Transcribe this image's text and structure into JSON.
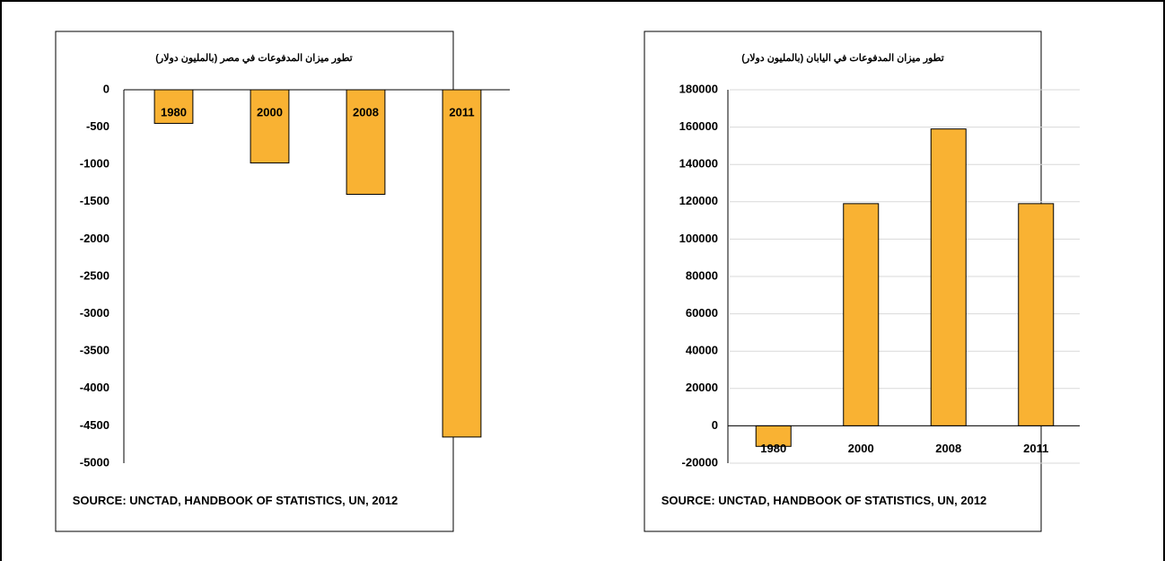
{
  "chart_data": [
    {
      "type": "bar",
      "title": "تطور ميزان المدفوعات في مصر (بالمليون دولار)",
      "categories": [
        "1980",
        "2000",
        "2008",
        "2011"
      ],
      "values": [
        -450,
        -980,
        -1400,
        -4650
      ],
      "color": "#f9b233",
      "ylim": [
        -5000,
        0
      ],
      "yticks": [
        0,
        -500,
        -1000,
        -1500,
        -2000,
        -2500,
        -3000,
        -3500,
        -4000,
        -4500,
        -5000
      ],
      "grid": false,
      "source": "SOURCE: UNCTAD, HANDBOOK OF STATISTICS, UN, 2012"
    },
    {
      "type": "bar",
      "title": "تطور ميزان المدفوعات في اليابان (بالمليون دولار)",
      "categories": [
        "1980",
        "2000",
        "2008",
        "2011"
      ],
      "values": [
        -11000,
        119000,
        159000,
        119000
      ],
      "color": "#f9b233",
      "ylim": [
        -20000,
        180000
      ],
      "yticks": [
        180000,
        160000,
        140000,
        120000,
        100000,
        80000,
        60000,
        40000,
        20000,
        0,
        -20000
      ],
      "grid": true,
      "source": "SOURCE: UNCTAD, HANDBOOK OF STATISTICS, UN, 2012"
    }
  ]
}
